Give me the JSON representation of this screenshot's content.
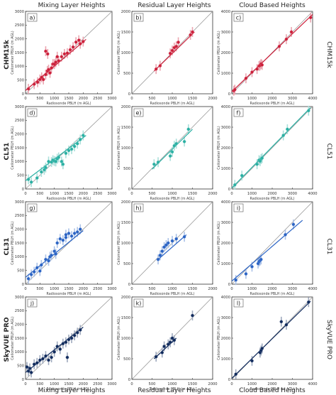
{
  "column_titles": [
    "Mixing Layer Heights",
    "Residual Layer Heights",
    "Cloud Based Heights"
  ],
  "row_labels": [
    "CHM15k",
    "CL51",
    "CL31",
    "SkyVUE PRO"
  ],
  "colors": [
    "#cc1f3a",
    "#2ab0a3",
    "#2a63c4",
    "#102a5c"
  ],
  "xlabel": "Radiosonde PBLH (m AGL)",
  "ylabel": "Ceilometer PBLH (m AGL)",
  "chart_data": [
    {
      "type": "scatter",
      "panel": "a)",
      "title": "Mixing Layer Heights",
      "row": "CHM15k",
      "xlim": [
        0,
        3000
      ],
      "ylim": [
        0,
        3000
      ],
      "x": [
        100,
        300,
        420,
        500,
        560,
        620,
        700,
        760,
        800,
        850,
        900,
        950,
        1000,
        1050,
        1100,
        1150,
        1250,
        1350,
        1450,
        1550,
        1650,
        1750,
        1850,
        1900,
        2000,
        700,
        770
      ],
      "y": [
        180,
        350,
        420,
        520,
        600,
        520,
        700,
        830,
        880,
        760,
        940,
        1080,
        1080,
        1150,
        1350,
        1200,
        1350,
        1450,
        1480,
        1600,
        1700,
        1880,
        1950,
        1820,
        1900,
        1550,
        1450
      ],
      "fit": [
        [
          0,
          120
        ],
        [
          2100,
          1980
        ]
      ]
    },
    {
      "type": "scatter",
      "panel": "b)",
      "title": "Residual Layer Heights",
      "row": "CHM15k",
      "xlim": [
        0,
        2000
      ],
      "ylim": [
        0,
        2000
      ],
      "x": [
        600,
        700,
        950,
        1000,
        1050,
        1100,
        1150,
        1450,
        1500
      ],
      "y": [
        600,
        680,
        980,
        1050,
        1120,
        1150,
        1250,
        1430,
        1500
      ],
      "fit": [
        [
          550,
          550
        ],
        [
          1550,
          1500
        ]
      ]
    },
    {
      "type": "scatter",
      "panel": "c)",
      "title": "Cloud Based Heights",
      "row": "CHM15k",
      "xlim": [
        0,
        4000
      ],
      "ylim": [
        0,
        4000
      ],
      "x": [
        100,
        150,
        700,
        1000,
        1250,
        1350,
        1400,
        1450,
        1500,
        2350,
        2700,
        2950,
        3900
      ],
      "y": [
        150,
        200,
        750,
        1050,
        1200,
        1350,
        1380,
        1450,
        1400,
        2300,
        2650,
        3000,
        3700
      ],
      "fit": [
        [
          0,
          100
        ],
        [
          4000,
          3850
        ]
      ]
    },
    {
      "type": "scatter",
      "panel": "d)",
      "title": "Mixing Layer Heights",
      "row": "CL51",
      "xlim": [
        0,
        3000
      ],
      "ylim": [
        0,
        3000
      ],
      "x": [
        100,
        200,
        400,
        550,
        650,
        700,
        800,
        900,
        950,
        1000,
        1050,
        1100,
        1150,
        1250,
        1300,
        1400,
        1500,
        1600,
        1700,
        1800,
        1900,
        2000
      ],
      "y": [
        350,
        250,
        400,
        620,
        700,
        780,
        1000,
        980,
        1050,
        1020,
        1000,
        1100,
        1150,
        1000,
        900,
        1300,
        1400,
        1450,
        1550,
        1650,
        1800,
        1950
      ],
      "fit": [
        [
          0,
          300
        ],
        [
          2100,
          1950
        ]
      ]
    },
    {
      "type": "scatter",
      "panel": "e)",
      "title": "Residual Layer Heights",
      "row": "CL51",
      "xlim": [
        0,
        2000
      ],
      "ylim": [
        0,
        2000
      ],
      "x": [
        550,
        650,
        950,
        1000,
        1050,
        1100,
        1300,
        1400
      ],
      "y": [
        600,
        650,
        800,
        900,
        1050,
        1100,
        1150,
        1450
      ],
      "fit": [
        [
          500,
          480
        ],
        [
          1500,
          1450
        ]
      ]
    },
    {
      "type": "scatter",
      "panel": "f)",
      "title": "Cloud Based Heights",
      "row": "CL51",
      "xlim": [
        0,
        4000
      ],
      "ylim": [
        0,
        4000
      ],
      "x": [
        150,
        500,
        1250,
        1350,
        1450,
        1400,
        1500,
        2550,
        2750,
        3800
      ],
      "y": [
        200,
        650,
        1200,
        1400,
        1450,
        1350,
        1500,
        2600,
        2900,
        3800
      ],
      "fit": [
        [
          0,
          50
        ],
        [
          3900,
          3950
        ]
      ]
    },
    {
      "type": "scatter",
      "panel": "g)",
      "title": "Mixing Layer Heights",
      "row": "CL31",
      "xlim": [
        0,
        3000
      ],
      "ylim": [
        0,
        3000
      ],
      "x": [
        100,
        200,
        300,
        400,
        500,
        550,
        700,
        800,
        850,
        900,
        1000,
        1050,
        1100,
        1200,
        1300,
        1400,
        1500,
        1600,
        1700,
        1800,
        1900,
        1400
      ],
      "y": [
        200,
        350,
        450,
        600,
        480,
        700,
        900,
        850,
        1000,
        1050,
        1200,
        1100,
        1500,
        1650,
        1600,
        1700,
        1850,
        1750,
        1850,
        1900,
        2000,
        1800
      ],
      "fit": [
        [
          0,
          250
        ],
        [
          2000,
          1950
        ]
      ]
    },
    {
      "type": "scatter",
      "panel": "h)",
      "title": "Residual Layer Heights",
      "row": "CL31",
      "xlim": [
        0,
        2000
      ],
      "ylim": [
        0,
        2000
      ],
      "x": [
        650,
        700,
        750,
        800,
        850,
        900,
        1000,
        1100,
        1300
      ],
      "y": [
        600,
        700,
        800,
        900,
        950,
        1000,
        1050,
        1100,
        1150
      ],
      "fit": [
        [
          650,
          600
        ],
        [
          1350,
          1200
        ]
      ]
    },
    {
      "type": "scatter",
      "panel": "i)",
      "title": "Cloud Based Heights",
      "row": "CL31",
      "xlim": [
        0,
        4000
      ],
      "ylim": [
        0,
        4000
      ],
      "x": [
        200,
        700,
        1000,
        1300,
        1350,
        1400,
        1450,
        2650,
        3050
      ],
      "y": [
        200,
        500,
        850,
        1000,
        1100,
        1150,
        1200,
        2400,
        2900
      ],
      "fit": [
        [
          0,
          150
        ],
        [
          3500,
          3100
        ]
      ]
    },
    {
      "type": "scatter",
      "panel": "j)",
      "title": "Mixing Layer Heights",
      "row": "SkyVUE PRO",
      "xlim": [
        0,
        3000
      ],
      "ylim": [
        0,
        3000
      ],
      "x": [
        50,
        100,
        150,
        200,
        300,
        400,
        500,
        600,
        700,
        800,
        900,
        1000,
        1100,
        1200,
        1300,
        1400,
        1500,
        1600,
        1700,
        1800,
        1900,
        1450
      ],
      "y": [
        450,
        300,
        400,
        250,
        550,
        600,
        700,
        750,
        850,
        700,
        800,
        1000,
        1200,
        1100,
        1300,
        1350,
        1450,
        1500,
        1600,
        1700,
        1800,
        800
      ],
      "fit": [
        [
          0,
          250
        ],
        [
          2000,
          1900
        ]
      ]
    },
    {
      "type": "scatter",
      "panel": "k)",
      "title": "Residual Layer Heights",
      "row": "SkyVUE PRO",
      "xlim": [
        0,
        2000
      ],
      "ylim": [
        0,
        2000
      ],
      "x": [
        600,
        750,
        800,
        900,
        950,
        1000,
        1050,
        1500
      ],
      "y": [
        550,
        650,
        800,
        850,
        900,
        1000,
        950,
        1550
      ],
      "fit": [
        [
          550,
          500
        ],
        [
          1100,
          1000
        ]
      ]
    },
    {
      "type": "scatter",
      "panel": "l)",
      "title": "Cloud Based Heights",
      "row": "SkyVUE PRO",
      "xlim": [
        0,
        4000
      ],
      "ylim": [
        0,
        4000
      ],
      "x": [
        200,
        1000,
        1400,
        1450,
        1500,
        2450,
        2700,
        3800
      ],
      "y": [
        250,
        900,
        1300,
        1400,
        1500,
        2800,
        2650,
        3750
      ],
      "fit": [
        [
          0,
          50
        ],
        [
          3900,
          3800
        ]
      ]
    }
  ]
}
